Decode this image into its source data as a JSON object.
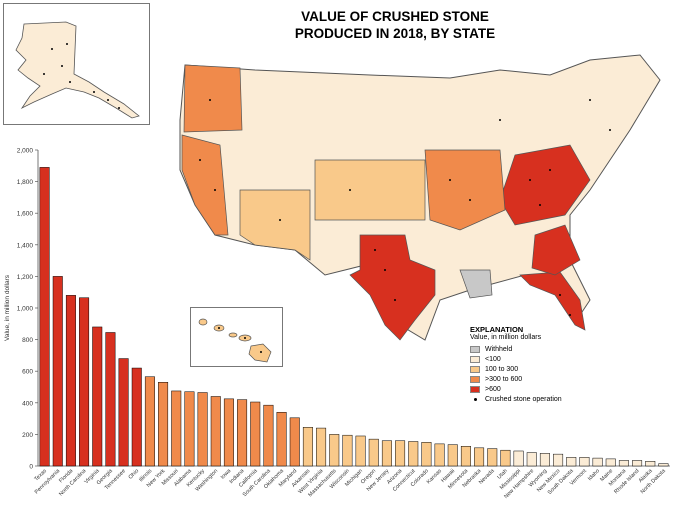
{
  "title_line1": "VALUE OF CRUSHED STONE",
  "title_line2": "PRODUCED IN 2018, BY STATE",
  "legend": {
    "title": "EXPLANATION",
    "subtitle": "Value, in million dollars",
    "items": [
      {
        "label": "Withheld",
        "color": "#c8c8c8"
      },
      {
        "label": "<100",
        "color": "#fbecd6"
      },
      {
        "label": "100 to 300",
        "color": "#f9c98a"
      },
      {
        "label": ">300 to 600",
        "color": "#f08a4b"
      },
      {
        "label": ">600",
        "color": "#d7301f"
      }
    ],
    "dot_label": "Crushed stone operation"
  },
  "colors": {
    "withheld": "#c8c8c8",
    "lt100": "#fbecd6",
    "c100_300": "#f9c98a",
    "c300_600": "#f08a4b",
    "gt600": "#d7301f",
    "border": "#555555"
  },
  "chart_data": {
    "type": "bar",
    "ylabel": "Value, in million dollars",
    "ylim": [
      0,
      2000
    ],
    "yticks": [
      "0",
      "200",
      "400",
      "600",
      "800",
      "1,000",
      "1,200",
      "1,400",
      "1,600",
      "1,800",
      "2,000"
    ],
    "categories": [
      "Texas",
      "Pennsylvania",
      "Florida",
      "North Carolina",
      "Virginia",
      "Georgia",
      "Tennessee",
      "Ohio",
      "Illinois",
      "New York",
      "Missouri",
      "Alabama",
      "Kentucky",
      "Washington",
      "Iowa",
      "Indiana",
      "California",
      "South Carolina",
      "Oklahoma",
      "Maryland",
      "Arkansas",
      "West Virginia",
      "Massachusetts",
      "Wisconsin",
      "Michigan",
      "Oregon",
      "New Jersey",
      "Arizona",
      "Connecticut",
      "Colorado",
      "Kansas",
      "Hawaii",
      "Minnesota",
      "Nebraska",
      "Nevada",
      "Utah",
      "Mississippi",
      "New Hampshire",
      "Wyoming",
      "New Mexico",
      "South Dakota",
      "Vermont",
      "Idaho",
      "Maine",
      "Montana",
      "Rhode Island",
      "Alaska",
      "North Dakota"
    ],
    "values": [
      1890,
      1200,
      1080,
      1065,
      880,
      845,
      680,
      620,
      565,
      530,
      475,
      470,
      465,
      440,
      425,
      420,
      405,
      385,
      340,
      305,
      245,
      240,
      200,
      195,
      190,
      170,
      160,
      160,
      155,
      150,
      140,
      135,
      125,
      115,
      110,
      100,
      95,
      85,
      80,
      75,
      55,
      55,
      50,
      45,
      35,
      35,
      30,
      15
    ]
  }
}
